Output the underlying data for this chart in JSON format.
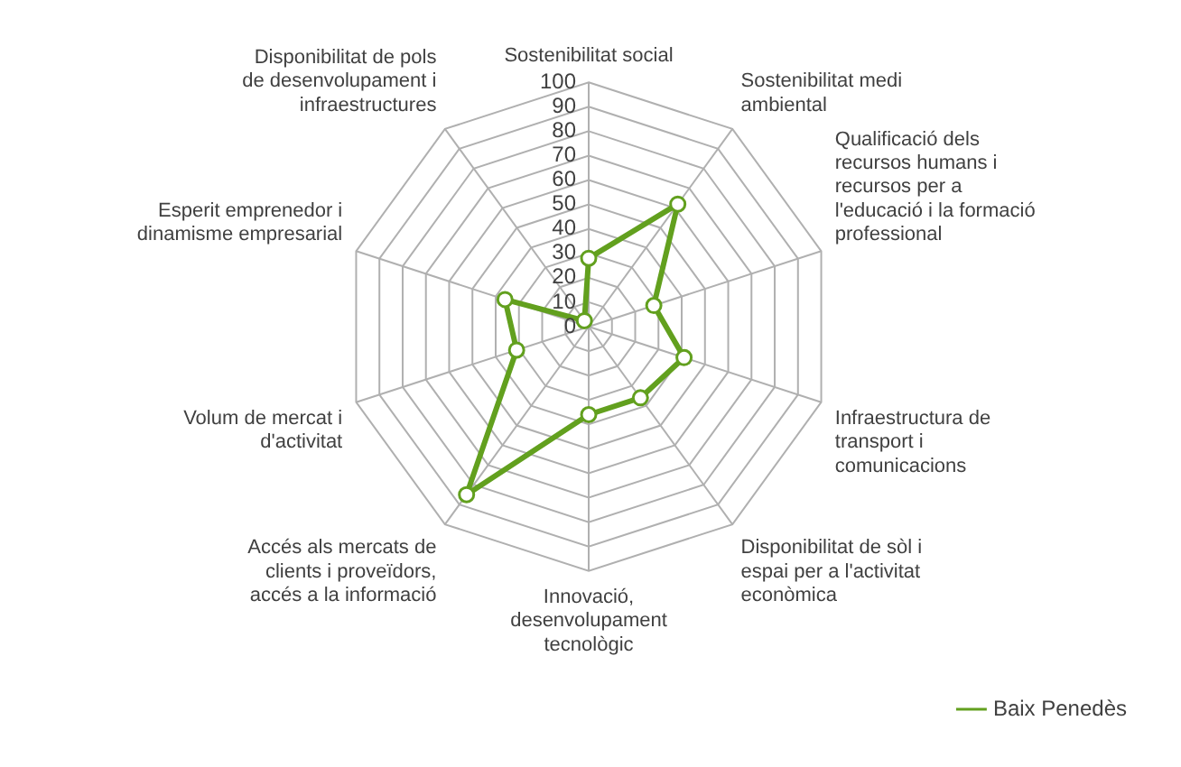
{
  "chart_data": {
    "type": "radar",
    "categories": [
      "Sostenibilitat social",
      "Sostenibilitat medi ambiental",
      "Qualificació dels recursos humans i recursos per a l'educació i la formació professional",
      "Infraestructura de transport i comunicacions",
      "Disponibilitat de sòl i espai per a l'activitat econòmica",
      "Innovació, desenvolupament tecnològic",
      "Accés als mercats de clients i proveïdors, accés a la informació",
      "Volum de mercat i d'activitat",
      "Esperit emprenedor i dinamisme empresarial",
      "Disponibilitat de pols de desenvolupament i infraestructures"
    ],
    "series": [
      {
        "name": "Baix Penedès",
        "color": "#62a01e",
        "values": [
          28,
          62,
          28,
          41,
          36,
          36,
          85,
          31,
          36,
          3
        ]
      }
    ],
    "ylim": [
      0,
      100
    ],
    "yticks": [
      0,
      10,
      20,
      30,
      40,
      50,
      60,
      70,
      80,
      90,
      100
    ],
    "grid": true,
    "legend": "bottom right",
    "marker": "circle"
  }
}
